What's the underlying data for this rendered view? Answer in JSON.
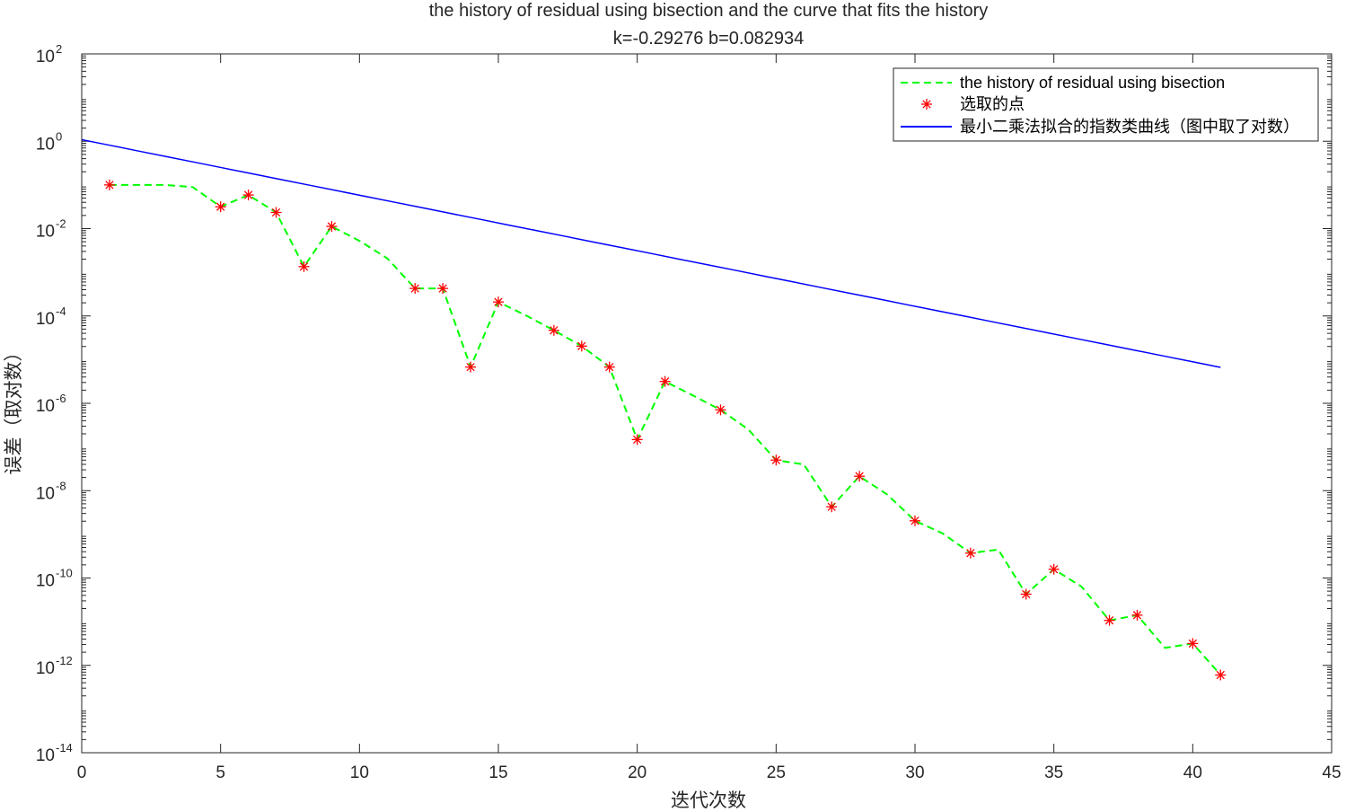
{
  "chart_data": {
    "type": "line",
    "title": "the history of residual using bisection and the curve that fits the history",
    "subtitle": "k=-0.29276 b=0.082934",
    "xlabel": "迭代次数",
    "ylabel": "误差（取对数）",
    "xlim": [
      0,
      45
    ],
    "ylim": [
      1e-14,
      100
    ],
    "yscale": "log",
    "xticks": [
      0,
      5,
      10,
      15,
      20,
      25,
      30,
      35,
      40,
      45
    ],
    "yticks": [
      {
        "base": "10",
        "exp": "-14",
        "value": -14
      },
      {
        "base": "10",
        "exp": "-12",
        "value": -12
      },
      {
        "base": "10",
        "exp": "-10",
        "value": -10
      },
      {
        "base": "10",
        "exp": "-8",
        "value": -8
      },
      {
        "base": "10",
        "exp": "-6",
        "value": -6
      },
      {
        "base": "10",
        "exp": "-4",
        "value": -4
      },
      {
        "base": "10",
        "exp": "-2",
        "value": -2
      },
      {
        "base": "10",
        "exp": "0",
        "value": 0
      },
      {
        "base": "10",
        "exp": "2",
        "value": 2
      }
    ],
    "grid": false,
    "legend_position": "top-right",
    "series": [
      {
        "name": "the history of residual using bisection",
        "style": "dashed",
        "color": "#00ff00",
        "x": [
          1,
          2,
          3,
          4,
          5,
          6,
          7,
          8,
          9,
          10,
          11,
          12,
          13,
          14,
          15,
          16,
          17,
          18,
          19,
          20,
          21,
          22,
          23,
          24,
          25,
          26,
          27,
          28,
          29,
          30,
          31,
          32,
          33,
          34,
          35,
          36,
          37,
          38,
          39,
          40,
          41
        ],
        "log10y": [
          -1.0,
          -1.0,
          -1.0,
          -1.05,
          -1.5,
          -1.23,
          -1.63,
          -2.87,
          -1.95,
          -2.28,
          -2.68,
          -3.37,
          -3.37,
          -5.17,
          -3.68,
          -3.99,
          -4.33,
          -4.69,
          -5.17,
          -6.83,
          -5.5,
          -5.82,
          -6.15,
          -6.6,
          -7.3,
          -7.4,
          -8.37,
          -7.67,
          -8.09,
          -8.69,
          -8.98,
          -9.43,
          -9.35,
          -10.37,
          -9.8,
          -10.2,
          -10.97,
          -10.85,
          -11.6,
          -11.5,
          -12.22
        ]
      },
      {
        "name": "选取的点",
        "style": "marker",
        "marker": "*",
        "color": "#ff0000",
        "x": [
          1,
          5,
          6,
          7,
          8,
          9,
          12,
          13,
          14,
          15,
          17,
          18,
          19,
          20,
          21,
          23,
          25,
          27,
          28,
          30,
          32,
          34,
          35,
          37,
          38,
          40,
          41
        ],
        "log10y": [
          -1.0,
          -1.5,
          -1.23,
          -1.63,
          -2.87,
          -1.95,
          -3.37,
          -3.37,
          -5.17,
          -3.68,
          -4.33,
          -4.69,
          -5.17,
          -6.83,
          -5.5,
          -6.15,
          -7.3,
          -8.37,
          -7.67,
          -8.69,
          -9.43,
          -10.37,
          -9.8,
          -10.97,
          -10.85,
          -11.5,
          -12.22
        ]
      },
      {
        "name": "最小二乘法拟合的指数类曲线（图中取了对数）",
        "style": "solid",
        "color": "#0000ff",
        "k": -0.29276,
        "b": 0.082934,
        "x_range": [
          0,
          41
        ]
      }
    ]
  }
}
